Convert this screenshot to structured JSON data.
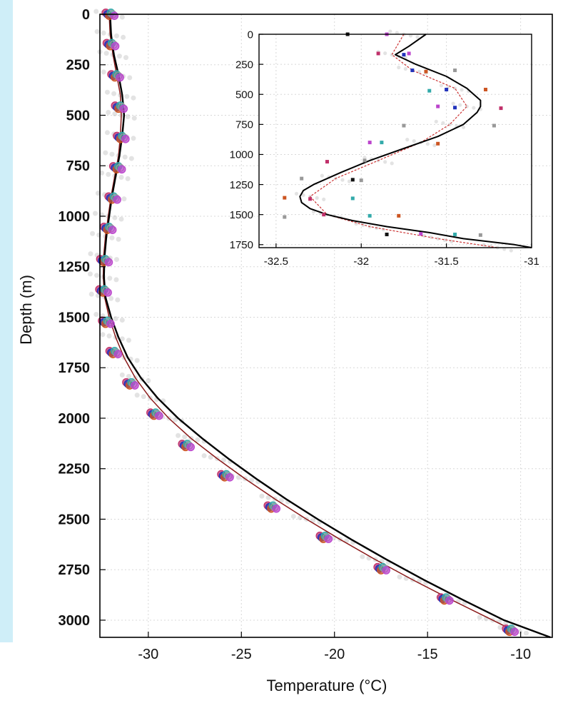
{
  "chart_data": [
    {
      "type": "scatter",
      "xlabel": "Temperature (°C)",
      "ylabel": "Depth (m)",
      "xlim": [
        -32.6,
        -8.3
      ],
      "ylim": [
        3085,
        0
      ],
      "xticks": [
        -30,
        -25,
        -20,
        -15,
        -10
      ],
      "yticks": [
        0,
        250,
        500,
        750,
        1000,
        1250,
        1500,
        1750,
        2000,
        2250,
        2500,
        2750,
        3000
      ],
      "grid": true,
      "model_curve": {
        "color": "#000000",
        "depth": [
          0,
          100,
          200,
          300,
          400,
          500,
          600,
          700,
          800,
          900,
          1000,
          1100,
          1200,
          1300,
          1400,
          1500,
          1600,
          1700,
          1800,
          1900,
          2000,
          2100,
          2200,
          2300,
          2400,
          2500,
          2600,
          2700,
          2800,
          2900,
          3000,
          3085
        ],
        "temperature": [
          -32.05,
          -32.0,
          -31.85,
          -31.6,
          -31.4,
          -31.3,
          -31.4,
          -31.55,
          -31.75,
          -31.95,
          -32.1,
          -32.25,
          -32.35,
          -32.38,
          -32.3,
          -32.0,
          -31.6,
          -31.1,
          -30.4,
          -29.5,
          -28.4,
          -27.1,
          -25.7,
          -24.2,
          -22.6,
          -20.9,
          -19.1,
          -17.2,
          -15.2,
          -13.1,
          -10.9,
          -8.4
        ]
      },
      "measured_profile": {
        "color": "#8b1a1a",
        "depth": [
          0,
          100,
          200,
          300,
          400,
          500,
          600,
          700,
          800,
          900,
          1000,
          1100,
          1200,
          1300,
          1400,
          1500,
          1600,
          1700,
          1800,
          1900,
          2000,
          2100,
          2200,
          2300,
          2400,
          2500,
          2600,
          2700,
          2800,
          2900,
          3000,
          3050
        ],
        "temperature": [
          -32.1,
          -32.05,
          -31.9,
          -31.7,
          -31.5,
          -31.45,
          -31.5,
          -31.6,
          -31.8,
          -32.0,
          -32.15,
          -32.3,
          -32.4,
          -32.42,
          -32.35,
          -32.1,
          -31.75,
          -31.3,
          -30.7,
          -29.9,
          -28.9,
          -27.7,
          -26.3,
          -24.8,
          -23.2,
          -21.5,
          -19.7,
          -17.8,
          -15.8,
          -13.7,
          -11.5,
          -10.4
        ]
      },
      "marker_colors": [
        "#c0306a",
        "#2233bb",
        "#cc5522",
        "#33aaaa",
        "#999999",
        "#bb44cc"
      ],
      "point_groups": [
        {
          "depth": 0,
          "temperature": -32.1
        },
        {
          "depth": 150,
          "temperature": -32.05
        },
        {
          "depth": 305,
          "temperature": -31.8
        },
        {
          "depth": 460,
          "temperature": -31.6
        },
        {
          "depth": 610,
          "temperature": -31.5
        },
        {
          "depth": 760,
          "temperature": -31.7
        },
        {
          "depth": 910,
          "temperature": -31.95
        },
        {
          "depth": 1060,
          "temperature": -32.2
        },
        {
          "depth": 1220,
          "temperature": -32.4
        },
        {
          "depth": 1370,
          "temperature": -32.45
        },
        {
          "depth": 1525,
          "temperature": -32.3
        },
        {
          "depth": 1675,
          "temperature": -31.9
        },
        {
          "depth": 1830,
          "temperature": -31.0
        },
        {
          "depth": 1980,
          "temperature": -29.7
        },
        {
          "depth": 2135,
          "temperature": -28.0
        },
        {
          "depth": 2285,
          "temperature": -25.9
        },
        {
          "depth": 2440,
          "temperature": -23.4
        },
        {
          "depth": 2590,
          "temperature": -20.6
        },
        {
          "depth": 2745,
          "temperature": -17.5
        },
        {
          "depth": 2895,
          "temperature": -14.1
        },
        {
          "depth": 3050,
          "temperature": -10.6
        }
      ]
    },
    {
      "type": "scatter",
      "inset": true,
      "xlim": [
        -32.6,
        -31.0
      ],
      "ylim": [
        1775,
        0
      ],
      "xticks": [
        -32.5,
        -32,
        -31.5,
        -31
      ],
      "yticks": [
        0,
        250,
        500,
        750,
        1000,
        1250,
        1500,
        1750
      ],
      "grid": true,
      "model_curve": {
        "color": "#000000",
        "depth": [
          0,
          100,
          170,
          250,
          350,
          450,
          550,
          600,
          650,
          750,
          850,
          950,
          1050,
          1150,
          1250,
          1300,
          1350,
          1400,
          1450,
          1500,
          1550,
          1600,
          1650,
          1700,
          1750,
          1775
        ],
        "temperature": [
          -31.62,
          -31.72,
          -31.8,
          -31.68,
          -31.5,
          -31.38,
          -31.3,
          -31.3,
          -31.32,
          -31.4,
          -31.55,
          -31.75,
          -31.95,
          -32.12,
          -32.28,
          -32.34,
          -32.36,
          -32.35,
          -32.3,
          -32.2,
          -32.05,
          -31.85,
          -31.6,
          -31.4,
          -31.1,
          -31.0
        ]
      },
      "measured_profile": {
        "color": "#cc3333",
        "depth": [
          0,
          170,
          300,
          450,
          600,
          750,
          900,
          1050,
          1200,
          1350,
          1500,
          1600,
          1700,
          1775
        ],
        "temperature": [
          -31.75,
          -31.82,
          -31.7,
          -31.45,
          -31.38,
          -31.48,
          -31.65,
          -31.9,
          -32.15,
          -32.3,
          -32.2,
          -31.95,
          -31.55,
          -31.2
        ]
      },
      "points": [
        {
          "depth": 0,
          "temperature": -32.08,
          "c": "#111111"
        },
        {
          "depth": 0,
          "temperature": -31.85,
          "c": "#bb44cc"
        },
        {
          "depth": 160,
          "temperature": -31.9,
          "c": "#c0306a"
        },
        {
          "depth": 170,
          "temperature": -31.75,
          "c": "#2233bb"
        },
        {
          "depth": 160,
          "temperature": -31.72,
          "c": "#bb44cc"
        },
        {
          "depth": 300,
          "temperature": -31.7,
          "c": "#2233bb"
        },
        {
          "depth": 310,
          "temperature": -31.62,
          "c": "#cc5522"
        },
        {
          "depth": 300,
          "temperature": -31.45,
          "c": "#999999"
        },
        {
          "depth": 460,
          "temperature": -31.5,
          "c": "#2233bb"
        },
        {
          "depth": 460,
          "temperature": -31.27,
          "c": "#cc5522"
        },
        {
          "depth": 470,
          "temperature": -31.6,
          "c": "#33aaaa"
        },
        {
          "depth": 610,
          "temperature": -31.45,
          "c": "#2233bb"
        },
        {
          "depth": 615,
          "temperature": -31.18,
          "c": "#c0306a"
        },
        {
          "depth": 600,
          "temperature": -31.55,
          "c": "#bb44cc"
        },
        {
          "depth": 760,
          "temperature": -31.75,
          "c": "#999999"
        },
        {
          "depth": 760,
          "temperature": -31.22,
          "c": "#999999"
        },
        {
          "depth": 900,
          "temperature": -31.95,
          "c": "#bb44cc"
        },
        {
          "depth": 910,
          "temperature": -31.55,
          "c": "#cc5522"
        },
        {
          "depth": 900,
          "temperature": -31.88,
          "c": "#33aaaa"
        },
        {
          "depth": 1060,
          "temperature": -32.2,
          "c": "#c0306a"
        },
        {
          "depth": 1050,
          "temperature": -31.98,
          "c": "#999999"
        },
        {
          "depth": 1210,
          "temperature": -32.05,
          "c": "#111111"
        },
        {
          "depth": 1200,
          "temperature": -32.35,
          "c": "#999999"
        },
        {
          "depth": 1215,
          "temperature": -32.0,
          "c": "#999999"
        },
        {
          "depth": 1360,
          "temperature": -32.45,
          "c": "#cc5522"
        },
        {
          "depth": 1370,
          "temperature": -32.3,
          "c": "#c0306a"
        },
        {
          "depth": 1365,
          "temperature": -32.05,
          "c": "#33aaaa"
        },
        {
          "depth": 1500,
          "temperature": -32.22,
          "c": "#c0306a"
        },
        {
          "depth": 1510,
          "temperature": -31.95,
          "c": "#33aaaa"
        },
        {
          "depth": 1520,
          "temperature": -32.45,
          "c": "#999999"
        },
        {
          "depth": 1510,
          "temperature": -31.78,
          "c": "#cc5522"
        },
        {
          "depth": 1665,
          "temperature": -31.85,
          "c": "#111111"
        },
        {
          "depth": 1660,
          "temperature": -31.65,
          "c": "#bb44cc"
        },
        {
          "depth": 1665,
          "temperature": -31.45,
          "c": "#33aaaa"
        },
        {
          "depth": 1670,
          "temperature": -31.3,
          "c": "#999999"
        }
      ]
    }
  ]
}
